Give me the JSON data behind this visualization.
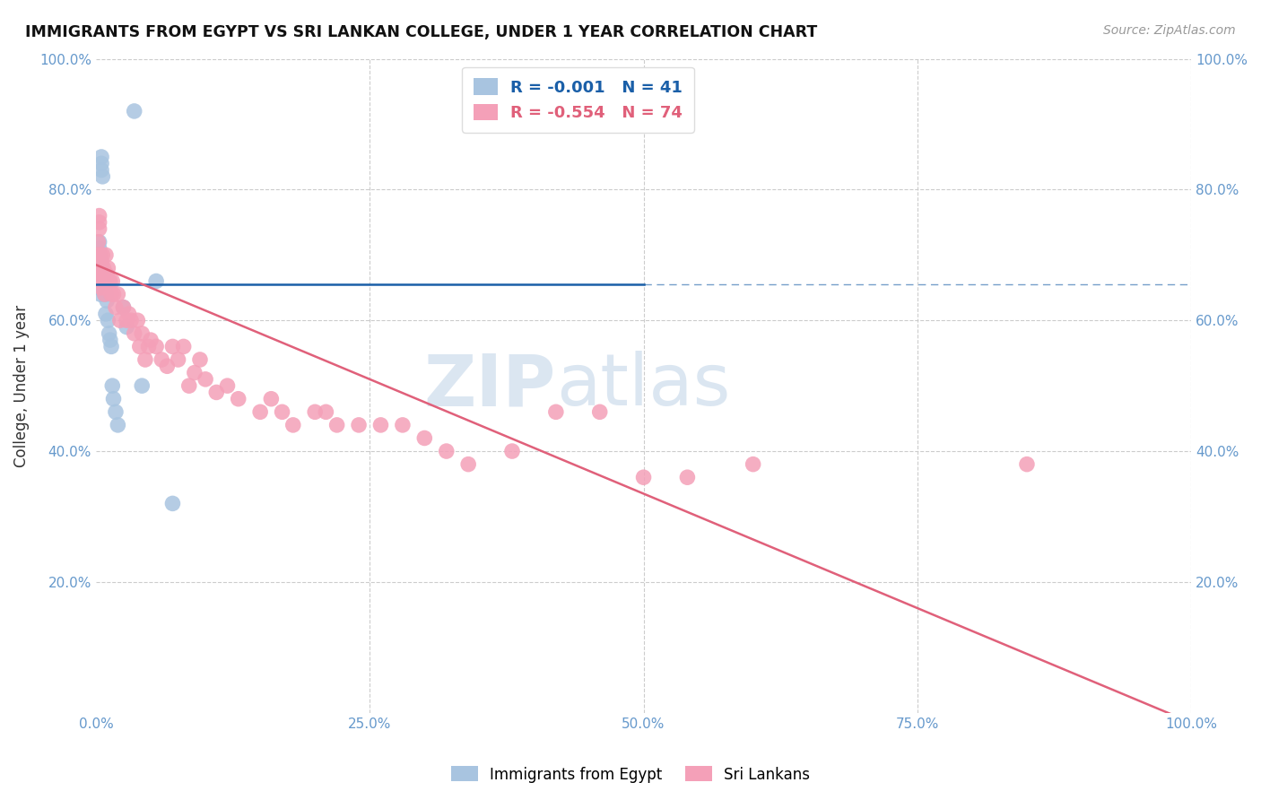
{
  "title": "IMMIGRANTS FROM EGYPT VS SRI LANKAN COLLEGE, UNDER 1 YEAR CORRELATION CHART",
  "source": "Source: ZipAtlas.com",
  "ylabel": "College, Under 1 year",
  "xlim": [
    0,
    1
  ],
  "ylim": [
    0,
    1
  ],
  "blue_R": -0.001,
  "blue_N": 41,
  "pink_R": -0.554,
  "pink_N": 74,
  "blue_color": "#a8c4e0",
  "pink_color": "#f4a0b8",
  "blue_line_color": "#1a5fa8",
  "pink_line_color": "#e0607a",
  "watermark_color": "#ccdcec",
  "legend_label_blue": "Immigrants from Egypt",
  "legend_label_pink": "Sri Lankans",
  "background_color": "#ffffff",
  "grid_color": "#cccccc",
  "tick_color": "#6699cc",
  "blue_line_y": 0.655,
  "pink_line_x0": 0.0,
  "pink_line_y0": 0.685,
  "pink_line_x1": 1.0,
  "pink_line_y1": -0.015,
  "blue_x": [
    0.001,
    0.001,
    0.002,
    0.002,
    0.002,
    0.003,
    0.003,
    0.003,
    0.003,
    0.004,
    0.004,
    0.004,
    0.005,
    0.005,
    0.005,
    0.005,
    0.005,
    0.006,
    0.006,
    0.006,
    0.007,
    0.007,
    0.008,
    0.008,
    0.009,
    0.009,
    0.01,
    0.011,
    0.012,
    0.013,
    0.014,
    0.015,
    0.016,
    0.018,
    0.02,
    0.025,
    0.028,
    0.035,
    0.042,
    0.055,
    0.07
  ],
  "blue_y": [
    0.655,
    0.66,
    0.68,
    0.67,
    0.65,
    0.66,
    0.72,
    0.71,
    0.7,
    0.69,
    0.68,
    0.64,
    0.66,
    0.65,
    0.83,
    0.84,
    0.85,
    0.66,
    0.67,
    0.82,
    0.67,
    0.66,
    0.65,
    0.64,
    0.64,
    0.61,
    0.63,
    0.6,
    0.58,
    0.57,
    0.56,
    0.5,
    0.48,
    0.46,
    0.44,
    0.62,
    0.59,
    0.92,
    0.5,
    0.66,
    0.32
  ],
  "pink_x": [
    0.001,
    0.001,
    0.002,
    0.002,
    0.003,
    0.003,
    0.003,
    0.004,
    0.004,
    0.005,
    0.005,
    0.005,
    0.006,
    0.006,
    0.007,
    0.007,
    0.008,
    0.008,
    0.009,
    0.01,
    0.01,
    0.011,
    0.012,
    0.013,
    0.014,
    0.015,
    0.016,
    0.018,
    0.02,
    0.022,
    0.025,
    0.028,
    0.03,
    0.032,
    0.035,
    0.038,
    0.04,
    0.042,
    0.045,
    0.048,
    0.05,
    0.055,
    0.06,
    0.065,
    0.07,
    0.075,
    0.08,
    0.085,
    0.09,
    0.095,
    0.1,
    0.11,
    0.12,
    0.13,
    0.15,
    0.16,
    0.17,
    0.18,
    0.2,
    0.21,
    0.22,
    0.24,
    0.26,
    0.28,
    0.3,
    0.32,
    0.34,
    0.38,
    0.42,
    0.46,
    0.5,
    0.54,
    0.6,
    0.85
  ],
  "pink_y": [
    0.68,
    0.66,
    0.72,
    0.7,
    0.75,
    0.74,
    0.76,
    0.68,
    0.7,
    0.65,
    0.67,
    0.69,
    0.7,
    0.66,
    0.66,
    0.68,
    0.64,
    0.66,
    0.7,
    0.67,
    0.66,
    0.68,
    0.66,
    0.66,
    0.64,
    0.66,
    0.64,
    0.62,
    0.64,
    0.6,
    0.62,
    0.6,
    0.61,
    0.6,
    0.58,
    0.6,
    0.56,
    0.58,
    0.54,
    0.56,
    0.57,
    0.56,
    0.54,
    0.53,
    0.56,
    0.54,
    0.56,
    0.5,
    0.52,
    0.54,
    0.51,
    0.49,
    0.5,
    0.48,
    0.46,
    0.48,
    0.46,
    0.44,
    0.46,
    0.46,
    0.44,
    0.44,
    0.44,
    0.44,
    0.42,
    0.4,
    0.38,
    0.4,
    0.46,
    0.46,
    0.36,
    0.36,
    0.38,
    0.38
  ]
}
